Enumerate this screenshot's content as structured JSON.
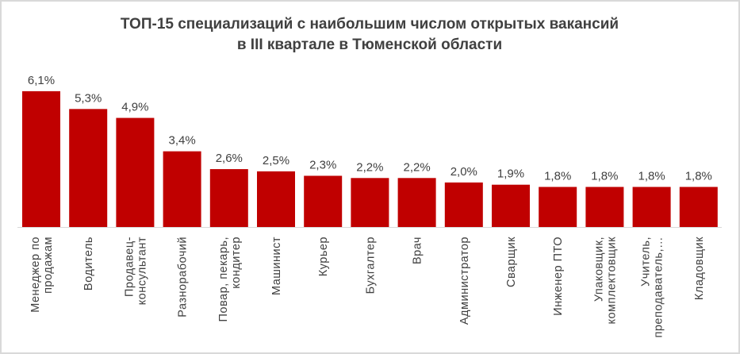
{
  "chart_data": {
    "type": "bar",
    "title": "ТОП-15 специализаций с наибольшим числом открытых вакансий в III  квартале в Тюменской области",
    "title_lines": [
      "ТОП-15 специализаций с наибольшим числом открытых вакансий",
      "в III  квартале в Тюменской области"
    ],
    "categories": [
      [
        "Менеджер по",
        "продажам"
      ],
      [
        "Водитель"
      ],
      [
        "Продавец-",
        "консультант"
      ],
      [
        "Разнорабочий"
      ],
      [
        "Повар, пекарь,",
        "кондитер"
      ],
      [
        "Машинист"
      ],
      [
        "Курьер"
      ],
      [
        "Бухгалтер"
      ],
      [
        "Врач"
      ],
      [
        "Администратор"
      ],
      [
        "Сварщик"
      ],
      [
        "Инженер ПТО"
      ],
      [
        "Упаковщик,",
        "комплектовщик"
      ],
      [
        "Учитель,",
        "преподаватель,…"
      ],
      [
        "Кладовщик"
      ]
    ],
    "values": [
      6.1,
      5.3,
      4.9,
      3.4,
      2.6,
      2.5,
      2.3,
      2.2,
      2.2,
      2.0,
      1.9,
      1.8,
      1.8,
      1.8,
      1.8
    ],
    "data_labels": [
      "6,1%",
      "5,3%",
      "4,9%",
      "3,4%",
      "2,6%",
      "2,5%",
      "2,3%",
      "2,2%",
      "2,2%",
      "2,0%",
      "1,9%",
      "1,8%",
      "1,8%",
      "1,8%",
      "1,8%"
    ],
    "unit": "%",
    "xlabel": "",
    "ylabel": "",
    "ylim": [
      0,
      6.1
    ],
    "grid": false,
    "legend": "none",
    "bar_color": "#C00000"
  }
}
